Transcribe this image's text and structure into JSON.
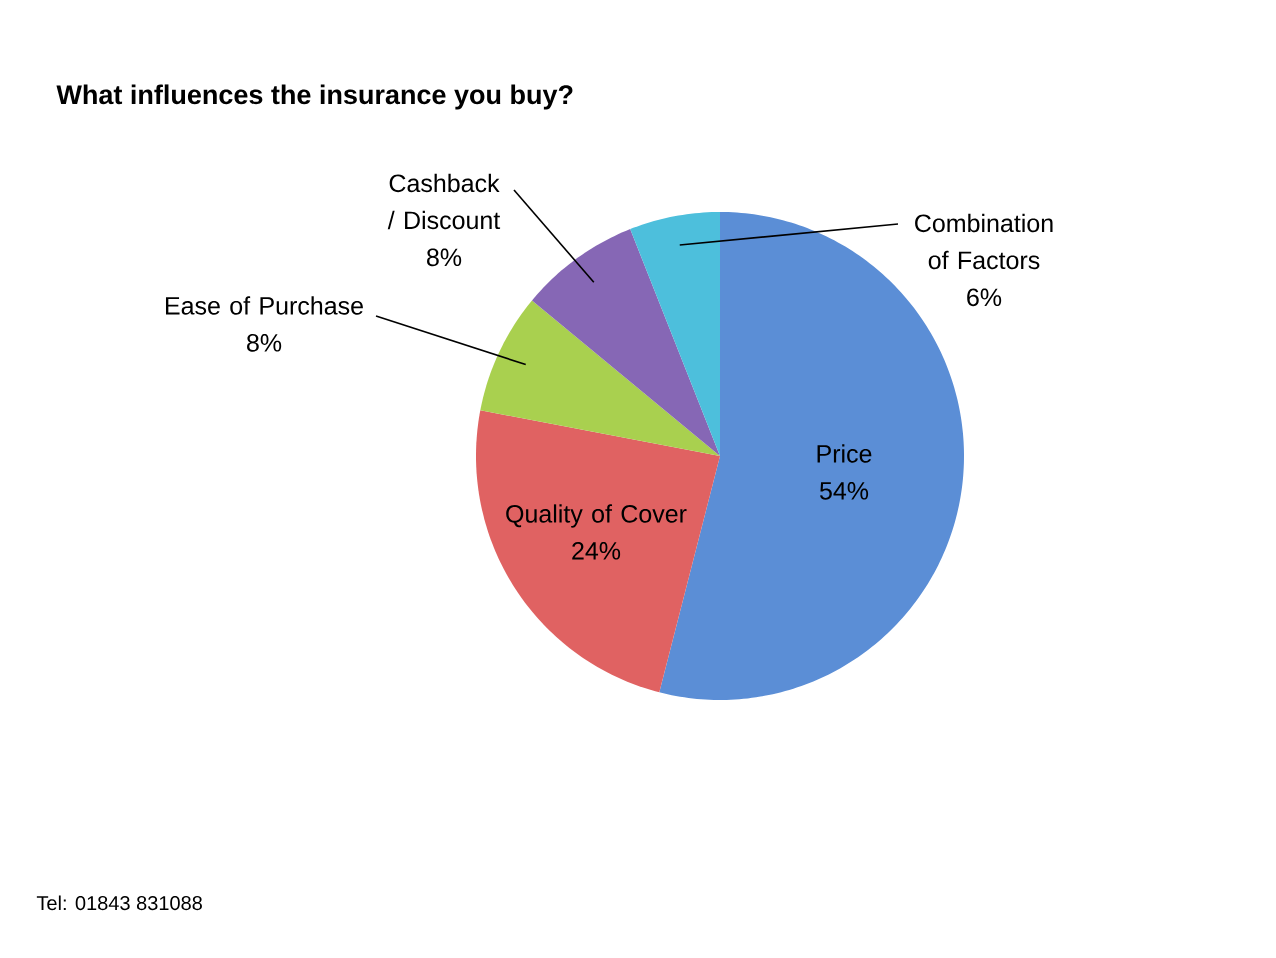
{
  "chart_data": {
    "type": "pie",
    "title": "What influences the insurance you buy?",
    "categories": [
      "Price",
      "Quality of Cover",
      "Ease of Purchase",
      "Cashback / Discount",
      "Combination of Factors"
    ],
    "values": [
      54,
      24,
      8,
      8,
      6
    ],
    "value_labels": [
      "54%",
      "24%",
      "8%",
      "8%",
      "6%"
    ],
    "colors": [
      "#5b8ed6",
      "#e06262",
      "#a9d04f",
      "#8667b5",
      "#4dbfdc"
    ],
    "annotations": [
      "Tel: 01843 831088"
    ]
  }
}
